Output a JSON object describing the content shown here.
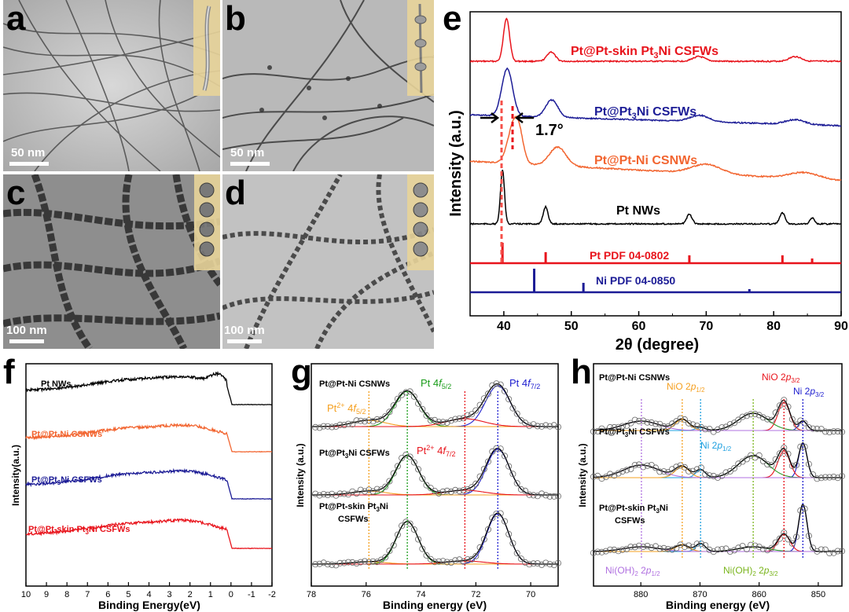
{
  "panels": {
    "a": {
      "letter": "a",
      "scale": "50 nm"
    },
    "b": {
      "letter": "b",
      "scale": "50 nm"
    },
    "c": {
      "letter": "c",
      "scale": "100 nm"
    },
    "d": {
      "letter": "d",
      "scale": "100 nm"
    },
    "e": {
      "letter": "e"
    },
    "f": {
      "letter": "f"
    },
    "g": {
      "letter": "g"
    },
    "h": {
      "letter": "h"
    }
  },
  "chart_data": [
    {
      "panel": "e",
      "type": "line",
      "xlabel": "2θ (degree)",
      "ylabel": "Intensity (a.u.)",
      "xlim": [
        35,
        90
      ],
      "xticks": [
        "40",
        "50",
        "60",
        "70",
        "80",
        "90"
      ],
      "annotation": "1.7°",
      "series": [
        {
          "name": "Pt@Pt-skin Pt3Ni CSFWs",
          "color": "#e8141c",
          "peaks": [
            40.4,
            47.0,
            68.9,
            83.2
          ]
        },
        {
          "name": "Pt@Pt3Ni CSFWs",
          "color": "#1c1c96",
          "peaks": [
            40.5,
            47.1,
            69.0,
            83.2
          ]
        },
        {
          "name": "Pt@Pt-Ni CSNWs",
          "color": "#f26530",
          "peaks": [
            41.5,
            48.0,
            70.0,
            84.5
          ]
        },
        {
          "name": "Pt NWs",
          "color": "#000000",
          "peaks": [
            39.8,
            46.2,
            67.5,
            81.3,
            85.7
          ]
        }
      ],
      "references": [
        {
          "name": "Pt PDF 04-0802",
          "color": "#e8141c",
          "lines": [
            39.8,
            46.2,
            67.5,
            81.3,
            85.7
          ]
        },
        {
          "name": "Ni PDF 04-0850",
          "color": "#1c1c96",
          "lines": [
            44.5,
            51.8,
            76.4
          ]
        }
      ]
    },
    {
      "panel": "f",
      "type": "line",
      "xlabel": "Binding Energy(eV)",
      "ylabel": "Intensity(a.u.)",
      "xlim": [
        10,
        -2
      ],
      "xticks": [
        "10",
        "9",
        "8",
        "7",
        "6",
        "5",
        "4",
        "3",
        "2",
        "1",
        "0",
        "-1",
        "-2"
      ],
      "series": [
        {
          "name": "Pt NWs",
          "color": "#000000"
        },
        {
          "name": "Pt@Pt-Ni CSNWs",
          "color": "#f26530"
        },
        {
          "name": "Pt@Pt3Ni CSFWs",
          "color": "#1c1c96"
        },
        {
          "name": "Pt@Pt-skin Pt3Ni CSFWs",
          "color": "#e8141c"
        }
      ]
    },
    {
      "panel": "g",
      "type": "line",
      "xlabel": "Binding energy (eV)",
      "ylabel": "Intensity (a.u.)",
      "xlim": [
        78,
        69
      ],
      "xticks": [
        "78",
        "76",
        "74",
        "72",
        "70"
      ],
      "samples": [
        "Pt@Pt-Ni CSNWs",
        "Pt@Pt3Ni CSFWs",
        "Pt@Pt-skin Pt3Ni CSFWs"
      ],
      "peak_labels": [
        {
          "label": "Pt 4f5/2",
          "position": 74.5,
          "color": "#1a9c1a"
        },
        {
          "label": "Pt 4f7/2",
          "position": 71.2,
          "color": "#2020d0"
        },
        {
          "label": "Pt2+ 4f5/2",
          "position": 75.9,
          "color": "#f5a020"
        },
        {
          "label": "Pt2+ 4f7/2",
          "position": 72.4,
          "color": "#e8141c"
        }
      ]
    },
    {
      "panel": "h",
      "type": "line",
      "xlabel": "Binding energy (eV)",
      "ylabel": "Intensity (a.u.)",
      "xlim": [
        888,
        846
      ],
      "xticks": [
        "880",
        "870",
        "860",
        "850"
      ],
      "samples": [
        "Pt@Pt-Ni CSNWs",
        "Pt@Pt3Ni CSFWs",
        "Pt@Pt-skin Pt3Ni CSFWs"
      ],
      "peak_labels": [
        {
          "label": "NiO 2p1/2",
          "position": 873.0,
          "color": "#f5a020"
        },
        {
          "label": "NiO 2p3/2",
          "position": 855.8,
          "color": "#e8141c"
        },
        {
          "label": "Ni 2p3/2",
          "position": 852.6,
          "color": "#2020d0"
        },
        {
          "label": "Ni 2p1/2",
          "position": 869.9,
          "color": "#1ea0e0"
        },
        {
          "label": "Ni(OH)2 2p1/2",
          "position": 879.9,
          "color": "#b070e0"
        },
        {
          "label": "Ni(OH)2 2p3/2",
          "position": 861.0,
          "color": "#7ab51d"
        }
      ]
    }
  ],
  "text": {
    "e_s1": "Pt@Pt-skin Pt",
    "e_s1b": "3",
    "e_s1c": "Ni CSFWs",
    "e_s2": "Pt@Pt",
    "e_s2b": "3",
    "e_s2c": "Ni CSFWs",
    "e_s3": "Pt@Pt-Ni CSNWs",
    "e_s4": "Pt NWs",
    "e_ref1": "Pt PDF 04-0802",
    "e_ref2": "Ni PDF 04-0850",
    "e_ann": "1.7°",
    "e_xlabel": "2θ (degree)",
    "e_ylabel": "Intensity (a.u.)",
    "f_s1": "Pt NWs",
    "f_s2": "Pt@Pt-Ni CSNWs",
    "f_s3a": "Pt@Pt",
    "f_s3b": "3",
    "f_s3c": "Ni CSFWs",
    "f_s4a": "Pt@Pt-skin Pt",
    "f_s4b": "3",
    "f_s4c": "Ni CSFWs",
    "f_xlabel": "Binding Energy(eV)",
    "f_ylabel": "Intensity(a.u.)",
    "g_s1": "Pt@Pt-Ni CSNWs",
    "g_s2a": "Pt@Pt",
    "g_s2b": "3",
    "g_s2c": "Ni CSFWs",
    "g_s3a": "Pt@Pt-skin Pt",
    "g_s3b": "3",
    "g_s3c": "Ni",
    "g_s3d": "CSFWs",
    "g_xlabel": "Binding energy (eV)",
    "g_ylabel": "Intensity (a.u.)",
    "h_s1": "Pt@Pt-Ni CSNWs",
    "h_s2a": "Pt@Pt",
    "h_s2b": "3",
    "h_s2c": "Ni CSFWs",
    "h_s3a": "Pt@Pt-skin Pt",
    "h_s3b": "3",
    "h_s3c": "Ni",
    "h_s3d": "CSFWs",
    "h_xlabel": "Binding energy (eV)",
    "h_ylabel": "Intensity (a.u.)"
  }
}
